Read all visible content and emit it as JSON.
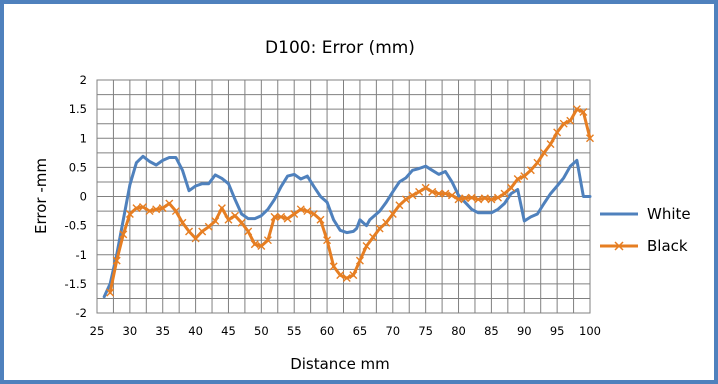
{
  "chart_data": {
    "type": "line",
    "title": "D100: Error (mm)",
    "xlabel": "Distance mm",
    "ylabel": "Error -mm",
    "xlim": [
      25,
      100
    ],
    "ylim": [
      -2,
      2
    ],
    "x_ticks": [
      "25",
      "30",
      "35",
      "40",
      "45",
      "50",
      "55",
      "60",
      "65",
      "70",
      "75",
      "80",
      "85",
      "90",
      "95",
      "100"
    ],
    "y_ticks": [
      "2",
      "1.5",
      "1",
      "0.5",
      "0",
      "-0.5",
      "-1",
      "-1.5",
      "-2"
    ],
    "grid": true,
    "legend_position": "right",
    "series": [
      {
        "name": "White",
        "color": "#4F81BD",
        "marker": "none",
        "points": [
          [
            26.1,
            -1.72
          ],
          [
            27,
            -1.5
          ],
          [
            28,
            -1.0
          ],
          [
            29,
            -0.4
          ],
          [
            30,
            0.2
          ],
          [
            31,
            0.58
          ],
          [
            32,
            0.69
          ],
          [
            33,
            0.6
          ],
          [
            34,
            0.54
          ],
          [
            35,
            0.62
          ],
          [
            36,
            0.67
          ],
          [
            37,
            0.67
          ],
          [
            38,
            0.45
          ],
          [
            39,
            0.1
          ],
          [
            40,
            0.18
          ],
          [
            41,
            0.22
          ],
          [
            42,
            0.22
          ],
          [
            43,
            0.37
          ],
          [
            44,
            0.31
          ],
          [
            45,
            0.22
          ],
          [
            46,
            -0.05
          ],
          [
            47,
            -0.3
          ],
          [
            48,
            -0.38
          ],
          [
            49,
            -0.38
          ],
          [
            50,
            -0.33
          ],
          [
            51,
            -0.22
          ],
          [
            52,
            -0.05
          ],
          [
            53,
            0.17
          ],
          [
            54,
            0.35
          ],
          [
            55,
            0.38
          ],
          [
            56,
            0.3
          ],
          [
            57,
            0.35
          ],
          [
            58,
            0.17
          ],
          [
            59,
            0.0
          ],
          [
            60,
            -0.1
          ],
          [
            61,
            -0.4
          ],
          [
            62,
            -0.58
          ],
          [
            63,
            -0.62
          ],
          [
            64,
            -0.6
          ],
          [
            64.5,
            -0.55
          ],
          [
            65,
            -0.4
          ],
          [
            65.5,
            -0.45
          ],
          [
            66,
            -0.5
          ],
          [
            66.5,
            -0.4
          ],
          [
            67,
            -0.35
          ],
          [
            68,
            -0.25
          ],
          [
            69,
            -0.1
          ],
          [
            70,
            0.08
          ],
          [
            71,
            0.25
          ],
          [
            72,
            0.32
          ],
          [
            73,
            0.45
          ],
          [
            74,
            0.48
          ],
          [
            75,
            0.52
          ],
          [
            76,
            0.45
          ],
          [
            77,
            0.38
          ],
          [
            78,
            0.43
          ],
          [
            79,
            0.25
          ],
          [
            80,
            0.02
          ],
          [
            81,
            -0.1
          ],
          [
            82,
            -0.22
          ],
          [
            83,
            -0.28
          ],
          [
            84,
            -0.28
          ],
          [
            85,
            -0.28
          ],
          [
            86,
            -0.22
          ],
          [
            87,
            -0.12
          ],
          [
            88,
            0.05
          ],
          [
            89,
            0.12
          ],
          [
            90,
            -0.42
          ],
          [
            91,
            -0.35
          ],
          [
            92,
            -0.3
          ],
          [
            93,
            -0.12
          ],
          [
            94,
            0.05
          ],
          [
            95,
            0.18
          ],
          [
            96,
            0.32
          ],
          [
            97,
            0.52
          ],
          [
            98,
            0.62
          ],
          [
            99,
            0.0
          ],
          [
            100,
            0.0
          ]
        ]
      },
      {
        "name": "Black",
        "color": "#E67E22",
        "marker": "x",
        "points": [
          [
            27,
            -1.65
          ],
          [
            28,
            -1.1
          ],
          [
            29,
            -0.65
          ],
          [
            30,
            -0.3
          ],
          [
            31,
            -0.2
          ],
          [
            32,
            -0.18
          ],
          [
            33,
            -0.25
          ],
          [
            34,
            -0.22
          ],
          [
            35,
            -0.2
          ],
          [
            36,
            -0.12
          ],
          [
            37,
            -0.25
          ],
          [
            38,
            -0.45
          ],
          [
            39,
            -0.6
          ],
          [
            40,
            -0.72
          ],
          [
            41,
            -0.6
          ],
          [
            42,
            -0.52
          ],
          [
            43,
            -0.42
          ],
          [
            44,
            -0.2
          ],
          [
            45,
            -0.4
          ],
          [
            46,
            -0.33
          ],
          [
            47,
            -0.45
          ],
          [
            48,
            -0.6
          ],
          [
            49,
            -0.82
          ],
          [
            50,
            -0.85
          ],
          [
            51,
            -0.75
          ],
          [
            52,
            -0.35
          ],
          [
            53,
            -0.35
          ],
          [
            54,
            -0.38
          ],
          [
            55,
            -0.3
          ],
          [
            56,
            -0.22
          ],
          [
            57,
            -0.25
          ],
          [
            58,
            -0.3
          ],
          [
            59,
            -0.4
          ],
          [
            60,
            -0.75
          ],
          [
            61,
            -1.2
          ],
          [
            62,
            -1.35
          ],
          [
            63,
            -1.4
          ],
          [
            64,
            -1.35
          ],
          [
            65,
            -1.1
          ],
          [
            66,
            -0.85
          ],
          [
            67,
            -0.7
          ],
          [
            68,
            -0.55
          ],
          [
            69,
            -0.45
          ],
          [
            70,
            -0.3
          ],
          [
            71,
            -0.15
          ],
          [
            72,
            -0.05
          ],
          [
            73,
            0.02
          ],
          [
            74,
            0.08
          ],
          [
            75,
            0.15
          ],
          [
            76,
            0.08
          ],
          [
            77,
            0.05
          ],
          [
            78,
            0.05
          ],
          [
            79,
            0.02
          ],
          [
            80,
            -0.05
          ],
          [
            81,
            -0.03
          ],
          [
            82,
            -0.02
          ],
          [
            83,
            -0.05
          ],
          [
            84,
            -0.03
          ],
          [
            85,
            -0.05
          ],
          [
            86,
            -0.02
          ],
          [
            87,
            0.05
          ],
          [
            88,
            0.15
          ],
          [
            89,
            0.3
          ],
          [
            90,
            0.35
          ],
          [
            91,
            0.45
          ],
          [
            92,
            0.58
          ],
          [
            93,
            0.75
          ],
          [
            94,
            0.9
          ],
          [
            95,
            1.1
          ],
          [
            96,
            1.25
          ],
          [
            97,
            1.3
          ],
          [
            98,
            1.5
          ],
          [
            99,
            1.45
          ],
          [
            100,
            1.0
          ]
        ]
      }
    ]
  }
}
